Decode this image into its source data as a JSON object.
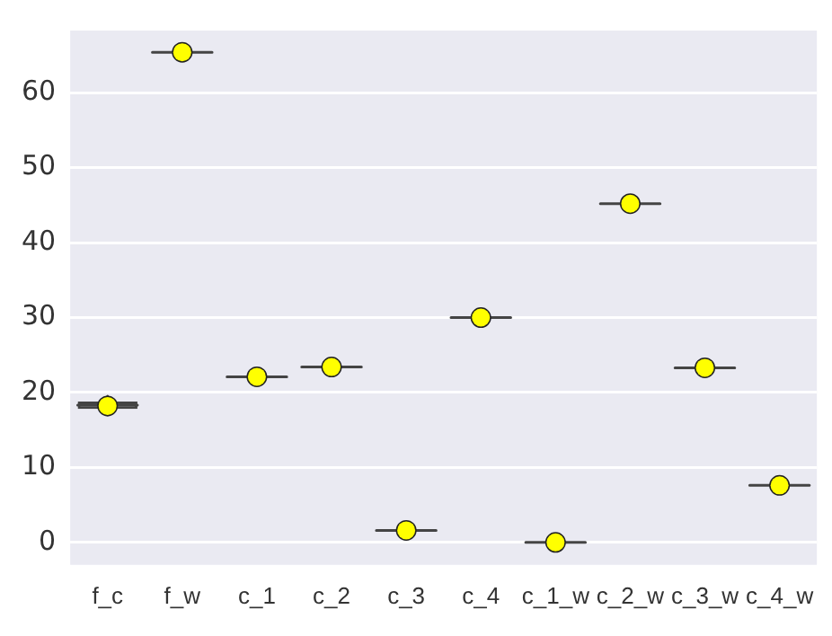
{
  "chart_data": {
    "type": "box",
    "categories": [
      "f_c",
      "f_w",
      "c_1",
      "c_2",
      "c_3",
      "c_4",
      "c_1_w",
      "c_2_w",
      "c_3_w",
      "c_4_w"
    ],
    "series": [
      {
        "color": "#444444",
        "boxes": [
          {
            "low": 17,
            "q1": 17.8,
            "median": 18.3,
            "q3": 18.8,
            "high": 19.5,
            "mean": 18.2
          },
          {
            "low": 65.4,
            "q1": 65.4,
            "median": 65.4,
            "q3": 65.4,
            "high": 65.4,
            "mean": 65.4
          },
          {
            "low": 22.1,
            "q1": 22.1,
            "median": 22.1,
            "q3": 22.1,
            "high": 22.1,
            "mean": 22.1
          },
          {
            "low": 23.4,
            "q1": 23.4,
            "median": 23.4,
            "q3": 23.4,
            "high": 23.4,
            "mean": 23.4
          },
          {
            "low": 1.6,
            "q1": 1.6,
            "median": 1.6,
            "q3": 1.6,
            "high": 1.6,
            "mean": 1.6
          },
          {
            "low": 30,
            "q1": 30,
            "median": 30,
            "q3": 30,
            "high": 30,
            "mean": 30
          },
          {
            "low": 0,
            "q1": 0,
            "median": 0,
            "q3": 0,
            "high": 0,
            "mean": 0
          },
          {
            "low": 45.2,
            "q1": 45.2,
            "median": 45.2,
            "q3": 45.2,
            "high": 45.2,
            "mean": 45.2
          },
          {
            "low": 23.3,
            "q1": 23.3,
            "median": 23.3,
            "q3": 23.3,
            "high": 23.3,
            "mean": 23.3
          },
          {
            "low": 7.6,
            "q1": 7.6,
            "median": 7.6,
            "q3": 7.6,
            "high": 7.6,
            "mean": 7.6
          }
        ]
      }
    ],
    "ylim": [
      -3,
      68.3
    ],
    "yticks": [
      0,
      10,
      20,
      30,
      40,
      50,
      60
    ],
    "grid": "y",
    "legend": false,
    "marker": "circle"
  }
}
